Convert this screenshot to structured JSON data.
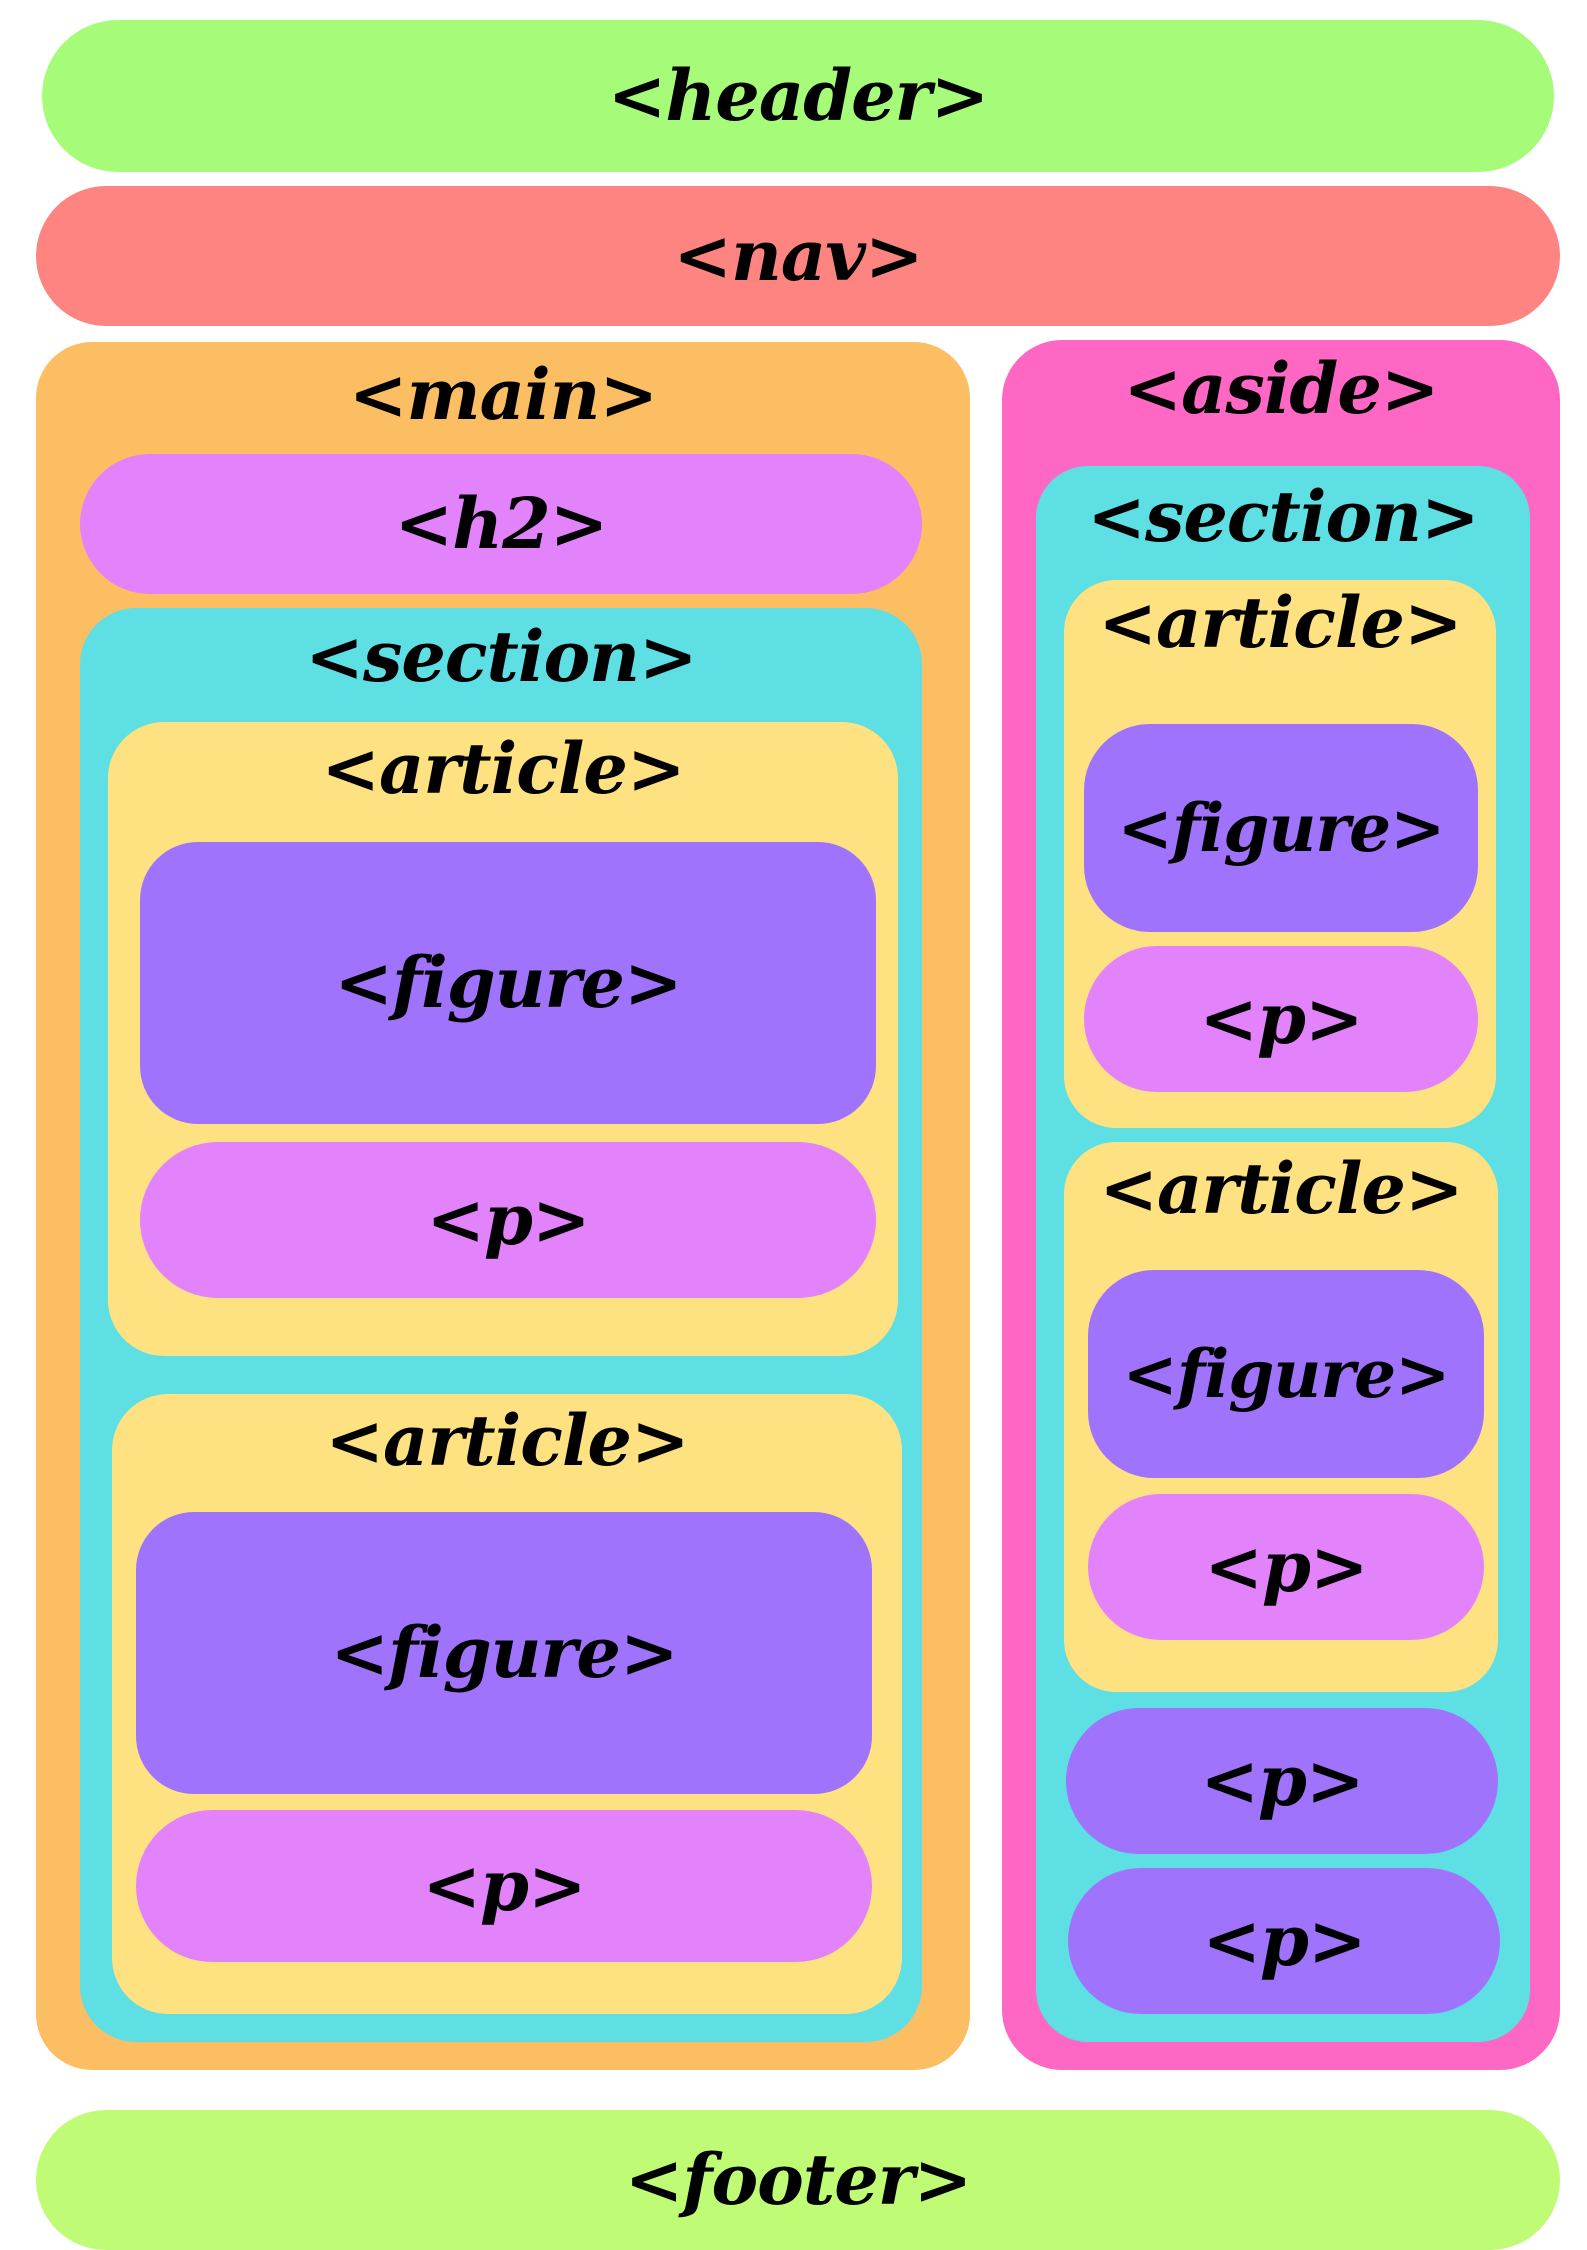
{
  "colors": {
    "header": "#a6fb79",
    "nav": "#fd8480",
    "main": "#fcbe62",
    "aside": "#fe67c3",
    "h2": "#e283fb",
    "section": "#5ddfe4",
    "article": "#fee282",
    "figure": "#9f73fb",
    "p": "#e283fb",
    "aside_p": "#9f73fb",
    "footer": "#c0fb75"
  },
  "header": {
    "label": "<header>"
  },
  "nav": {
    "label": "<nav>"
  },
  "main": {
    "label": "<main>",
    "h2": {
      "label": "<h2>"
    },
    "section": {
      "label": "<section>",
      "articles": [
        {
          "label": "<article>",
          "figure": "<figure>",
          "p": "<p>"
        },
        {
          "label": "<article>",
          "figure": "<figure>",
          "p": "<p>"
        }
      ]
    }
  },
  "aside": {
    "label": "<aside>",
    "section": {
      "label": "<section>",
      "articles": [
        {
          "label": "<article>",
          "figure": "<figure>",
          "p": "<p>"
        },
        {
          "label": "<article>",
          "figure": "<figure>",
          "p": "<p>"
        }
      ],
      "paragraphs": [
        "<p>",
        "<p>"
      ]
    }
  },
  "footer": {
    "label": "<footer>"
  }
}
